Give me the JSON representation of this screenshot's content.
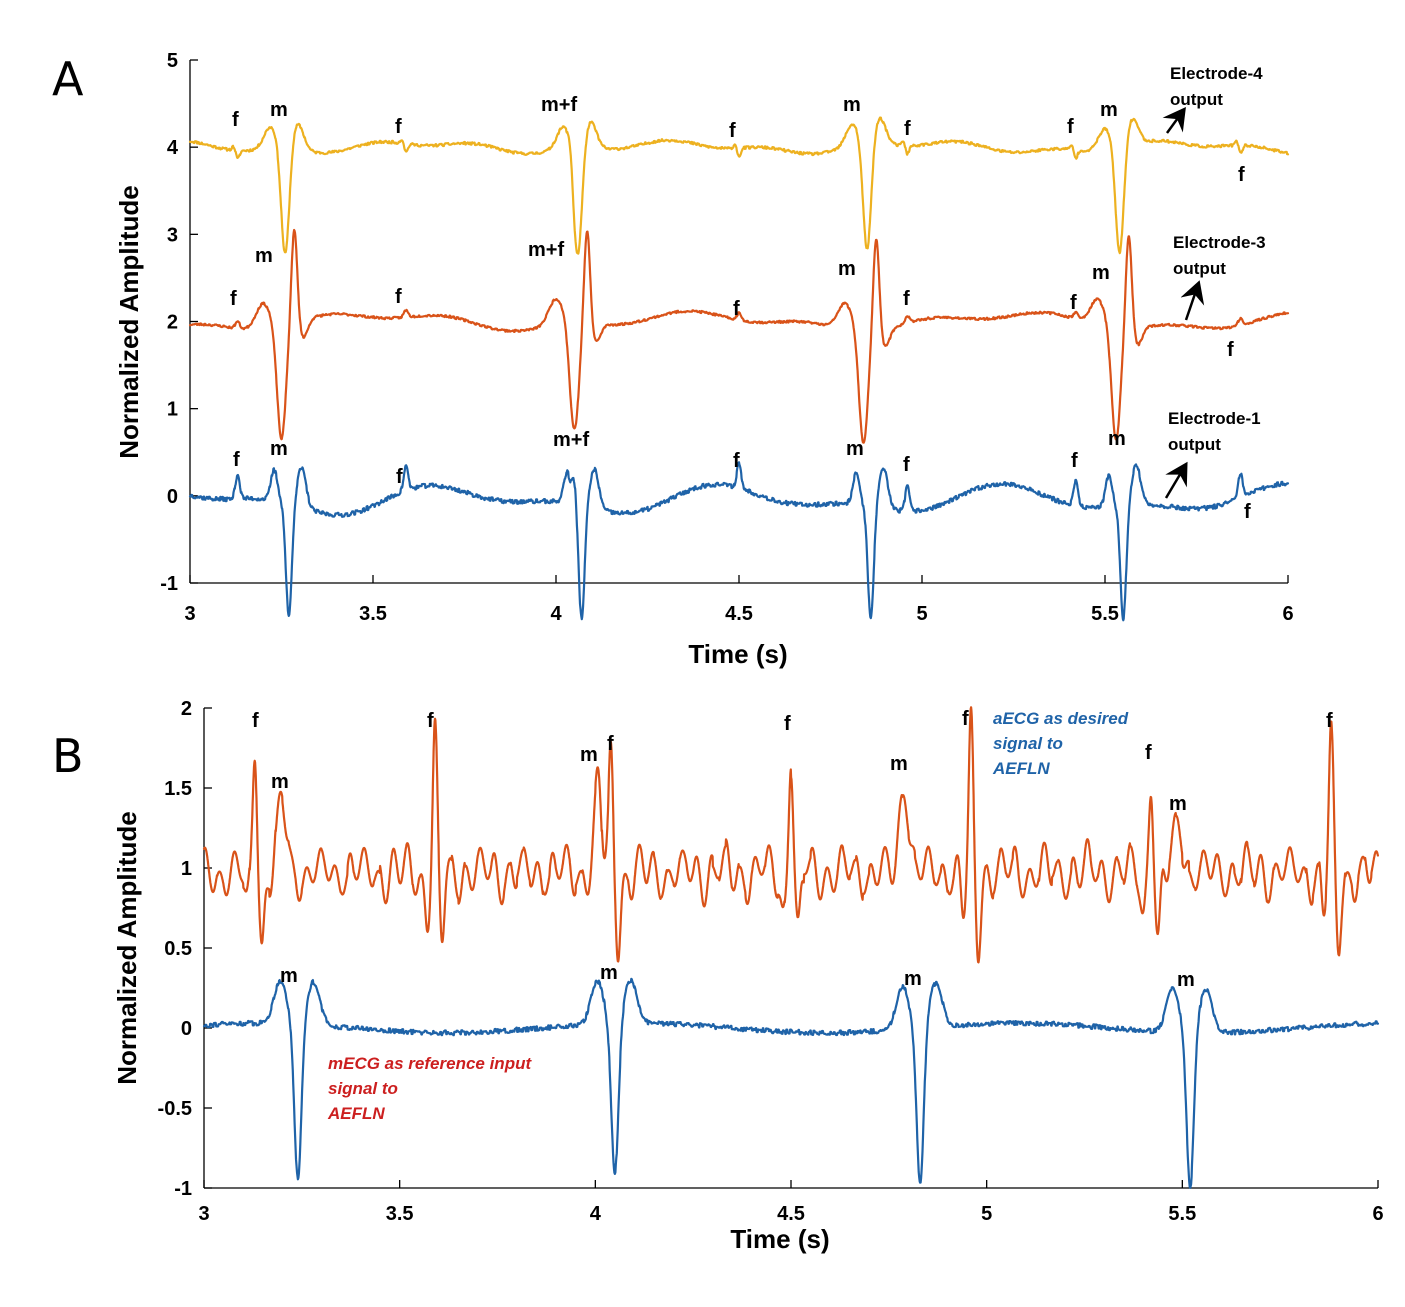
{
  "colors": {
    "electrode4": "#EDB120",
    "electrode3": "#D95319",
    "electrode1": "#1F63A8",
    "aecg_note": "#1F63A8",
    "mecg_note": "#CC1F1F",
    "arrow": "#000000"
  },
  "panels": [
    {
      "letter": "A",
      "xlabel": "Time (s)",
      "ylabel": "Normalized Amplitude",
      "x_ticks": [
        "3",
        "3.5",
        "4",
        "4.5",
        "5",
        "5.5",
        "6"
      ],
      "y_ticks": [
        "5",
        "4",
        "3",
        "2",
        "1",
        "0",
        "-1"
      ],
      "notes": [
        {
          "line1": "Electrode-4",
          "line2": "output"
        },
        {
          "line1": "Electrode-3",
          "line2": "output"
        },
        {
          "line1": "Electrode-1",
          "line2": "output"
        }
      ],
      "labels": [
        "f",
        "m",
        "f",
        "m+f",
        "f",
        "m",
        "f",
        "f",
        "m",
        "f",
        "m",
        "f",
        "f",
        "m+f",
        "f",
        "m",
        "f",
        "f",
        "m",
        "f",
        "f",
        "m",
        "f",
        "m+f",
        "f",
        "m",
        "f",
        "f",
        "m",
        "f"
      ]
    },
    {
      "letter": "B",
      "xlabel": "Time (s)",
      "ylabel": "Normalized Amplitude",
      "x_ticks": [
        "3",
        "3.5",
        "4",
        "4.5",
        "5",
        "5.5",
        "6"
      ],
      "y_ticks": [
        "2",
        "1.5",
        "1",
        "0.5",
        "0",
        "-0.5",
        "-1"
      ],
      "aecg_note": [
        "aECG as desired",
        "signal to",
        "AEFLN"
      ],
      "mecg_note": [
        "mECG as reference input",
        "signal to",
        "AEFLN"
      ],
      "labels": [
        "f",
        "m",
        "f",
        "m",
        "f",
        "f",
        "m",
        "f",
        "f",
        "m",
        "f",
        "m",
        "m",
        "m",
        "m"
      ]
    }
  ],
  "chart_data": [
    {
      "type": "line",
      "panel": "A",
      "title": "",
      "xlabel": "Time (s)",
      "ylabel": "Normalized Amplitude",
      "xlim": [
        3,
        6
      ],
      "ylim": [
        -1,
        5
      ],
      "grid": false,
      "legend": "none",
      "maternal_peak_times": [
        3.26,
        4.06,
        4.85,
        5.54
      ],
      "fetal_peak_times": [
        3.13,
        3.59,
        4.05,
        4.5,
        4.96,
        5.42,
        5.87
      ],
      "series": [
        {
          "name": "Electrode-4 output",
          "baseline": 4.0,
          "x": [
            3.0,
            3.13,
            3.22,
            3.26,
            3.3,
            3.59,
            4.0,
            4.06,
            4.1,
            4.5,
            4.82,
            4.85,
            4.88,
            4.96,
            5.42,
            5.51,
            5.54,
            5.57,
            5.87,
            6.0
          ],
          "y": [
            4.0,
            4.05,
            4.25,
            3.0,
            4.3,
            3.9,
            4.25,
            3.05,
            4.3,
            3.95,
            4.25,
            3.05,
            4.28,
            4.08,
            4.1,
            4.28,
            3.0,
            4.3,
            3.9,
            4.0
          ]
        },
        {
          "name": "Electrode-3 output",
          "baseline": 2.0,
          "x": [
            3.0,
            3.13,
            3.22,
            3.26,
            3.3,
            3.59,
            4.0,
            4.05,
            4.08,
            4.5,
            4.8,
            4.84,
            4.87,
            4.96,
            5.42,
            5.51,
            5.53,
            5.56,
            5.87,
            6.0
          ],
          "y": [
            2.0,
            1.95,
            2.3,
            1.0,
            2.85,
            2.05,
            2.3,
            1.05,
            2.85,
            1.98,
            2.28,
            1.02,
            2.85,
            2.08,
            2.0,
            2.3,
            1.0,
            2.8,
            1.95,
            2.0
          ],
          "type": "line"
        },
        {
          "name": "Electrode-1 output",
          "baseline": 0.0,
          "x": [
            3.0,
            3.05,
            3.13,
            3.23,
            3.27,
            3.3,
            3.59,
            3.83,
            4.03,
            4.07,
            4.1,
            4.5,
            4.65,
            4.82,
            4.86,
            4.89,
            4.96,
            5.1,
            5.42,
            5.51,
            5.55,
            5.58,
            5.87,
            6.0
          ],
          "y": [
            0.0,
            -0.25,
            0.3,
            0.35,
            -0.95,
            0.45,
            0.05,
            0.1,
            0.5,
            -0.98,
            0.45,
            0.25,
            -0.2,
            0.35,
            -0.95,
            0.5,
            0.1,
            -0.18,
            0.3,
            0.35,
            -0.92,
            0.5,
            0.2,
            0.0
          ]
        }
      ]
    },
    {
      "type": "line",
      "panel": "B",
      "title": "",
      "xlabel": "Time (s)",
      "ylabel": "Normalized Amplitude",
      "xlim": [
        3,
        6
      ],
      "ylim": [
        -1,
        2
      ],
      "grid": false,
      "legend": "none",
      "series": [
        {
          "name": "aECG as desired signal to AEFLN",
          "baseline": 1.0,
          "fetal_peaks": {
            "x": [
              3.13,
              3.59,
              4.04,
              4.5,
              4.96,
              5.42,
              5.88
            ],
            "y": [
              1.83,
              1.85,
              1.66,
              1.78,
              1.86,
              1.61,
              1.83
            ]
          },
          "maternal_peaks": {
            "x": [
              3.2,
              4.01,
              4.79,
              5.49
            ],
            "y": [
              1.45,
              1.59,
              1.58,
              1.33
            ]
          },
          "min": 0.46,
          "max": 1.86
        },
        {
          "name": "mECG as reference input signal to AEFLN",
          "baseline": 0.0,
          "maternal_troughs": {
            "x": [
              3.24,
              4.05,
              4.83,
              5.52
            ],
            "y": [
              -0.98,
              -0.95,
              -0.99,
              -0.99
            ]
          },
          "side_peaks": {
            "x": [
              3.19,
              3.28,
              3.99,
              4.09,
              4.79,
              4.87,
              5.48,
              5.56
            ],
            "y": [
              0.27,
              0.27,
              0.29,
              0.3,
              0.28,
              0.27,
              0.24,
              0.26
            ]
          }
        }
      ]
    }
  ]
}
